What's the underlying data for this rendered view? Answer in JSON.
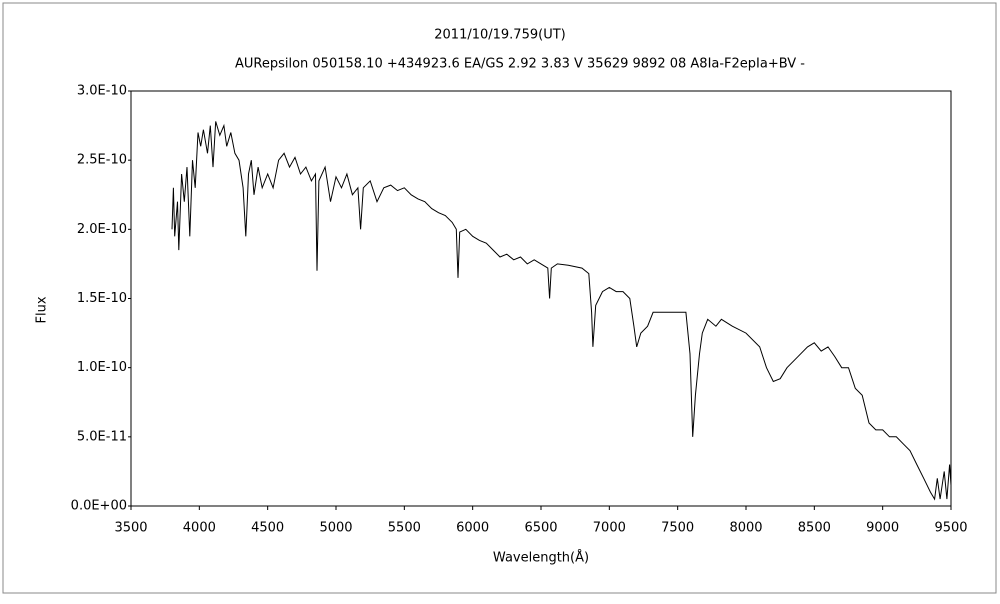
{
  "chart_data": {
    "type": "line",
    "title": "2011/10/19.759(UT)",
    "subtitle": "AURepsilon 050158.10 +434923.6 EA/GS 2.92 3.83 V 35629 9892 08 A8Ia-F2epIa+BV -",
    "x_label": "Wavelength(Å)",
    "y_label": "Flux",
    "xlim": [
      3500,
      9500
    ],
    "xticks": [
      3500,
      4000,
      4500,
      5000,
      5500,
      6000,
      6500,
      7000,
      7500,
      8000,
      8500,
      9000,
      9500
    ],
    "ylim": [
      0,
      3e-10
    ],
    "yticks": [
      {
        "value": 0,
        "label": "0.0E+00"
      },
      {
        "value": 5e-11,
        "label": "5.0E-11"
      },
      {
        "value": 1e-10,
        "label": "1.0E-10"
      },
      {
        "value": 1.5e-10,
        "label": "1.5E-10"
      },
      {
        "value": 2e-10,
        "label": "2.0E-10"
      },
      {
        "value": 2.5e-10,
        "label": "2.5E-10"
      },
      {
        "value": 3e-10,
        "label": "3.0E-10"
      }
    ],
    "grid": false,
    "series": [
      {
        "color": "#000000",
        "x": [
          3800,
          3810,
          3820,
          3840,
          3850,
          3870,
          3890,
          3910,
          3930,
          3950,
          3970,
          3990,
          4010,
          4030,
          4060,
          4080,
          4100,
          4120,
          4150,
          4180,
          4200,
          4230,
          4260,
          4290,
          4320,
          4340,
          4360,
          4380,
          4400,
          4430,
          4460,
          4500,
          4540,
          4580,
          4620,
          4660,
          4700,
          4740,
          4780,
          4820,
          4850,
          4861,
          4875,
          4920,
          4960,
          5000,
          5040,
          5080,
          5120,
          5160,
          5180,
          5200,
          5250,
          5300,
          5350,
          5400,
          5450,
          5500,
          5550,
          5600,
          5650,
          5700,
          5750,
          5800,
          5850,
          5880,
          5893,
          5905,
          5950,
          6000,
          6050,
          6100,
          6150,
          6200,
          6250,
          6300,
          6350,
          6400,
          6450,
          6500,
          6550,
          6563,
          6575,
          6620,
          6700,
          6800,
          6850,
          6870,
          6880,
          6900,
          6950,
          7000,
          7050,
          7100,
          7150,
          7180,
          7200,
          7230,
          7280,
          7320,
          7400,
          7500,
          7560,
          7590,
          7610,
          7630,
          7660,
          7680,
          7720,
          7780,
          7820,
          7900,
          8000,
          8100,
          8150,
          8200,
          8250,
          8300,
          8350,
          8400,
          8450,
          8500,
          8550,
          8600,
          8650,
          8700,
          8750,
          8800,
          8850,
          8900,
          8950,
          9000,
          9050,
          9100,
          9150,
          9200,
          9250,
          9300,
          9350,
          9380,
          9400,
          9420,
          9450,
          9470,
          9490,
          9500
        ],
        "values": [
          2e-10,
          2.3e-10,
          1.95e-10,
          2.2e-10,
          1.85e-10,
          2.4e-10,
          2.2e-10,
          2.45e-10,
          1.95e-10,
          2.5e-10,
          2.3e-10,
          2.7e-10,
          2.6e-10,
          2.72e-10,
          2.55e-10,
          2.75e-10,
          2.45e-10,
          2.78e-10,
          2.68e-10,
          2.75e-10,
          2.6e-10,
          2.7e-10,
          2.55e-10,
          2.5e-10,
          2.3e-10,
          1.95e-10,
          2.4e-10,
          2.5e-10,
          2.25e-10,
          2.45e-10,
          2.3e-10,
          2.4e-10,
          2.3e-10,
          2.5e-10,
          2.55e-10,
          2.45e-10,
          2.52e-10,
          2.4e-10,
          2.45e-10,
          2.35e-10,
          2.4e-10,
          1.7e-10,
          2.35e-10,
          2.45e-10,
          2.2e-10,
          2.38e-10,
          2.3e-10,
          2.4e-10,
          2.25e-10,
          2.3e-10,
          2e-10,
          2.3e-10,
          2.35e-10,
          2.2e-10,
          2.3e-10,
          2.32e-10,
          2.28e-10,
          2.3e-10,
          2.25e-10,
          2.22e-10,
          2.2e-10,
          2.15e-10,
          2.12e-10,
          2.1e-10,
          2.05e-10,
          2e-10,
          1.65e-10,
          1.98e-10,
          2e-10,
          1.95e-10,
          1.92e-10,
          1.9e-10,
          1.85e-10,
          1.8e-10,
          1.82e-10,
          1.78e-10,
          1.8e-10,
          1.75e-10,
          1.78e-10,
          1.75e-10,
          1.72e-10,
          1.5e-10,
          1.72e-10,
          1.75e-10,
          1.74e-10,
          1.72e-10,
          1.68e-10,
          1.4e-10,
          1.15e-10,
          1.45e-10,
          1.55e-10,
          1.58e-10,
          1.55e-10,
          1.55e-10,
          1.5e-10,
          1.3e-10,
          1.15e-10,
          1.25e-10,
          1.3e-10,
          1.4e-10,
          1.4e-10,
          1.4e-10,
          1.4e-10,
          1.1e-10,
          5e-11,
          8e-11,
          1.1e-10,
          1.25e-10,
          1.35e-10,
          1.3e-10,
          1.35e-10,
          1.3e-10,
          1.25e-10,
          1.15e-10,
          1e-10,
          9e-11,
          9.2e-11,
          1e-10,
          1.05e-10,
          1.1e-10,
          1.15e-10,
          1.18e-10,
          1.12e-10,
          1.15e-10,
          1.08e-10,
          1e-10,
          1e-10,
          8.5e-11,
          8e-11,
          6e-11,
          5.5e-11,
          5.5e-11,
          5e-11,
          5e-11,
          4.5e-11,
          4e-11,
          3e-11,
          2e-11,
          1e-11,
          5e-12,
          2e-11,
          5e-12,
          2.5e-11,
          5e-12,
          3e-11,
          1.5e-11
        ]
      }
    ]
  }
}
